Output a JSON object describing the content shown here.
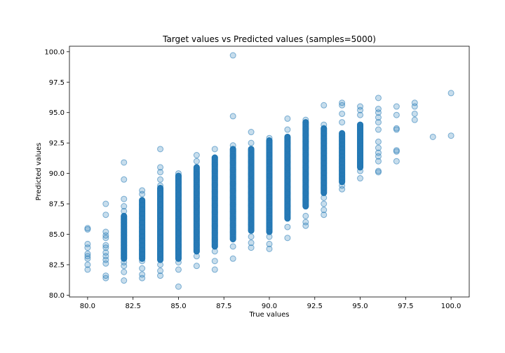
{
  "chart_data": {
    "type": "scatter",
    "title": "Target values vs Predicted values (samples=5000)",
    "xlabel": "True values",
    "ylabel": "Predicted values",
    "xlim": [
      79.0,
      101.0
    ],
    "ylim": [
      79.85,
      100.45
    ],
    "xticks": [
      80.0,
      82.5,
      85.0,
      87.5,
      90.0,
      92.5,
      95.0,
      97.5,
      100.0
    ],
    "yticks": [
      80.0,
      82.5,
      85.0,
      87.5,
      90.0,
      92.5,
      95.0,
      97.5,
      100.0
    ],
    "xtick_labels": [
      "80.0",
      "82.5",
      "85.0",
      "87.5",
      "90.0",
      "92.5",
      "95.0",
      "97.5",
      "100.0"
    ],
    "ytick_labels": [
      "80.0",
      "82.5",
      "85.0",
      "87.5",
      "90.0",
      "92.5",
      "95.0",
      "97.5",
      "100.0"
    ],
    "grid": false,
    "marker_color": "#1f77b4",
    "marker_alpha": 0.25,
    "columns": [
      {
        "x": 80,
        "dense": [],
        "points": [
          85.5,
          85.4,
          84.2,
          83.9,
          83.4,
          83.2,
          83.0,
          82.5,
          82.1
        ]
      },
      {
        "x": 81,
        "dense": [],
        "points": [
          87.5,
          86.6,
          85.2,
          84.9,
          84.7,
          84.1,
          83.9,
          83.5,
          83.2,
          82.9,
          82.6,
          81.6,
          81.4
        ]
      },
      {
        "x": 82,
        "dense": [
          83.0,
          86.5
        ],
        "points": [
          90.9,
          89.5,
          87.9,
          87.3,
          86.9,
          82.7,
          82.4,
          81.9,
          81.2
        ]
      },
      {
        "x": 83,
        "dense": [
          83.0,
          87.8
        ],
        "points": [
          88.6,
          88.3,
          82.8,
          82.2,
          81.7,
          81.4
        ]
      },
      {
        "x": 84,
        "dense": [
          82.9,
          88.8
        ],
        "points": [
          92.0,
          90.5,
          90.1,
          89.5,
          89.0,
          82.5,
          82.0,
          81.6
        ]
      },
      {
        "x": 85,
        "dense": [
          83.0,
          89.8
        ],
        "points": [
          90.0,
          82.7,
          82.1,
          80.7
        ]
      },
      {
        "x": 86,
        "dense": [
          83.6,
          90.5
        ],
        "points": [
          91.5,
          91.0,
          83.2,
          82.4
        ]
      },
      {
        "x": 87,
        "dense": [
          84.0,
          91.3
        ],
        "points": [
          92.0,
          83.6,
          82.8,
          82.1
        ]
      },
      {
        "x": 88,
        "dense": [
          84.6,
          92.0
        ],
        "points": [
          99.7,
          94.7,
          92.3,
          84.0,
          83.0
        ]
      },
      {
        "x": 89,
        "dense": [
          85.3,
          92.0
        ],
        "points": [
          93.4,
          92.5,
          84.8,
          84.3,
          83.9
        ]
      },
      {
        "x": 90,
        "dense": [
          85.2,
          92.7
        ],
        "points": [
          92.9,
          84.8,
          84.2,
          83.8
        ]
      },
      {
        "x": 91,
        "dense": [
          86.3,
          93.0
        ],
        "points": [
          94.5,
          93.6,
          85.6,
          84.7
        ]
      },
      {
        "x": 92,
        "dense": [
          87.3,
          94.2
        ],
        "points": [
          94.4,
          86.5,
          86.0,
          85.7
        ]
      },
      {
        "x": 93,
        "dense": [
          88.4,
          93.7
        ],
        "points": [
          95.6,
          94.0,
          88.0,
          87.5,
          87.0,
          86.6
        ]
      },
      {
        "x": 94,
        "dense": [
          89.3,
          93.3
        ],
        "points": [
          95.8,
          95.6,
          94.9,
          94.2,
          89.0,
          88.7
        ]
      },
      {
        "x": 95,
        "dense": [
          90.5,
          94.0
        ],
        "points": [
          95.5,
          95.2,
          94.8,
          90.2,
          89.6
        ]
      },
      {
        "x": 96,
        "dense": [],
        "points": [
          96.2,
          95.3,
          95.0,
          94.6,
          94.2,
          93.6,
          92.6,
          92.1,
          91.7,
          91.4,
          91.0,
          90.2,
          90.1
        ]
      },
      {
        "x": 97,
        "dense": [],
        "points": [
          95.5,
          94.8,
          93.7,
          93.6,
          91.9,
          91.8,
          91.0
        ]
      },
      {
        "x": 98,
        "dense": [],
        "points": [
          95.8,
          95.5,
          94.9,
          94.4
        ]
      },
      {
        "x": 99,
        "dense": [],
        "points": [
          93.0
        ]
      },
      {
        "x": 100,
        "dense": [],
        "points": [
          96.6,
          93.1
        ]
      }
    ]
  }
}
